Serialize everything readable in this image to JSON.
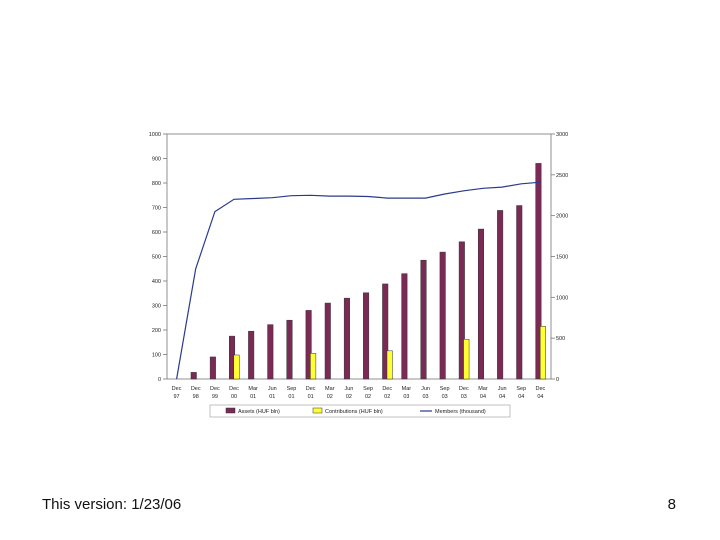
{
  "chart_data": {
    "type": "bar",
    "categories": [
      [
        "Dec",
        "97"
      ],
      [
        "Dec",
        "98"
      ],
      [
        "Dec",
        "99"
      ],
      [
        "Dec",
        "00"
      ],
      [
        "Mar",
        "01"
      ],
      [
        "Jun",
        "01"
      ],
      [
        "Sep",
        "01"
      ],
      [
        "Dec",
        "01"
      ],
      [
        "Mar",
        "02"
      ],
      [
        "Jun",
        "02"
      ],
      [
        "Sep",
        "02"
      ],
      [
        "Dec",
        "02"
      ],
      [
        "Mar",
        "03"
      ],
      [
        "Jun",
        "03"
      ],
      [
        "Sep",
        "03"
      ],
      [
        "Dec",
        "03"
      ],
      [
        "Mar",
        "04"
      ],
      [
        "Jun",
        "04"
      ],
      [
        "Sep",
        "04"
      ],
      [
        "Dec",
        "04"
      ]
    ],
    "series": [
      {
        "name": "Assets (HUF bln)",
        "type": "bar",
        "axis": "left",
        "color": "#7a2a55",
        "values": [
          0,
          27,
          90,
          175,
          195,
          222,
          240,
          280,
          310,
          330,
          352,
          388,
          430,
          485,
          518,
          560,
          612,
          688,
          708,
          880
        ]
      },
      {
        "name": "Contributions (HUF bln)",
        "type": "bar",
        "axis": "left",
        "color": "#ffff33",
        "values": [
          null,
          null,
          null,
          98,
          null,
          null,
          null,
          105,
          null,
          null,
          null,
          115,
          null,
          null,
          null,
          162,
          null,
          null,
          null,
          215
        ]
      },
      {
        "name": "Members (thousand)",
        "type": "line",
        "axis": "right",
        "color": "#2b3a8c",
        "values": [
          0,
          1350,
          2050,
          2200,
          2210,
          2220,
          2245,
          2250,
          2240,
          2240,
          2235,
          2215,
          2215,
          2215,
          2265,
          2305,
          2335,
          2350,
          2390,
          2410
        ]
      }
    ],
    "left_axis": {
      "ticks": [
        "0",
        "100",
        "200",
        "300",
        "400",
        "500",
        "600",
        "700",
        "800",
        "900",
        "1000"
      ],
      "ylim": [
        0,
        1000
      ]
    },
    "right_axis": {
      "ticks": [
        "0",
        "500",
        "1000",
        "1500",
        "2000",
        "2500",
        "3000"
      ],
      "ylim": [
        0,
        3000
      ]
    },
    "legend_position": "bottom"
  },
  "footer": {
    "version": "This version: 1/23/06",
    "page_number": "8"
  }
}
